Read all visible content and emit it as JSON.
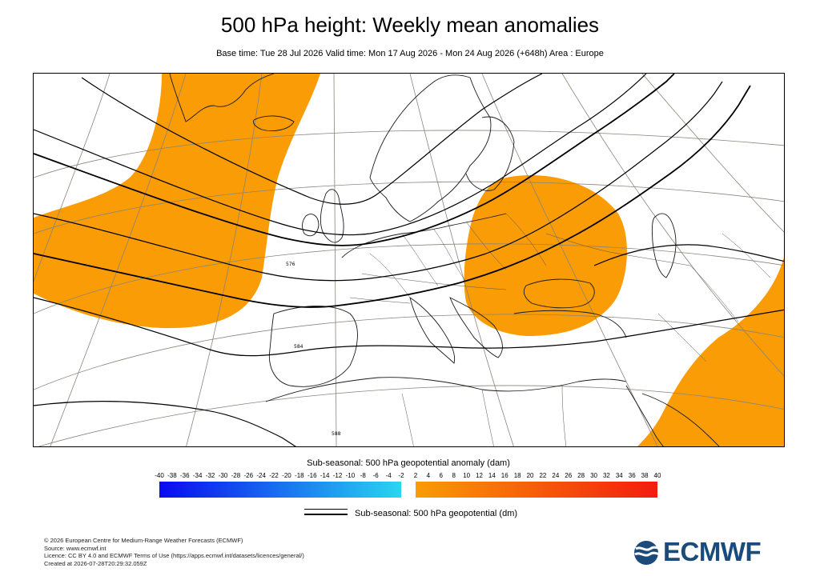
{
  "header": {
    "title": "500 hPa height: Weekly mean anomalies",
    "subtitle": "Base time: Tue 28 Jul 2026 Valid time: Mon 17 Aug 2026 - Mon 24 Aug 2026 (+648h) Area : Europe"
  },
  "map": {
    "area": "Europe",
    "contour_labels": [
      "576",
      "584",
      "588"
    ]
  },
  "legend": {
    "anomaly_title": "Sub-seasonal: 500 hPa geopotential anomaly (dam)",
    "negative_ticks": [
      "-40",
      "-38",
      "-36",
      "-34",
      "-32",
      "-30",
      "-28",
      "-26",
      "-24",
      "-22",
      "-20",
      "-18",
      "-16",
      "-14",
      "-12",
      "-10",
      "-8",
      "-6",
      "-4",
      "-2"
    ],
    "positive_ticks": [
      "2",
      "4",
      "6",
      "8",
      "10",
      "12",
      "14",
      "16",
      "18",
      "20",
      "22",
      "24",
      "26",
      "28",
      "30",
      "32",
      "34",
      "36",
      "38",
      "40"
    ],
    "negative_colors": [
      "#0a0af0",
      "#28d6f0"
    ],
    "positive_colors": [
      "#f99c05",
      "#f31c0e"
    ],
    "contour_label": "Sub-seasonal: 500 hPa geopotential (dm)"
  },
  "footer": {
    "copyright": "© 2026 European Centre for Medium-Range Weather Forecasts (ECMWF)",
    "source": "Source: www.ecmwf.int",
    "licence": "Licence: CC BY 4.0 and ECMWF Terms of Use (https://apps.ecmwf.int/datasets/licences/general/)",
    "created": "Created at 2026-07-28T20:29:32.059Z"
  },
  "logo": {
    "text": "ECMWF",
    "color": "#1a4b7a"
  }
}
